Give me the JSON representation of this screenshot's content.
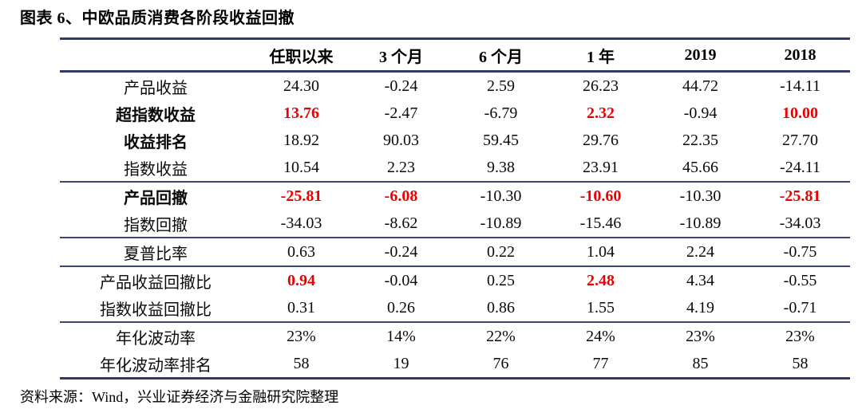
{
  "title": "图表 6、中欧品质消费各阶段收益回撤",
  "source_note": "资料来源：Wind，兴业证券经济与金融研究院整理",
  "colors": {
    "line_major": "#2f3a69",
    "line_divider": "#3c466f",
    "highlight_red": "#ee0000",
    "text": "#0a0a0a"
  },
  "table": {
    "corner_label": "",
    "columns": [
      "任职以来",
      "3 个月",
      "6 个月",
      "1 年",
      "2019",
      "2018"
    ],
    "rows": [
      {
        "label": "产品收益",
        "label_bold": false,
        "section_end": false,
        "cells": [
          {
            "v": "24.30"
          },
          {
            "v": "-0.24"
          },
          {
            "v": "2.59"
          },
          {
            "v": "26.23"
          },
          {
            "v": "44.72"
          },
          {
            "v": "-14.11"
          }
        ]
      },
      {
        "label": "超指数收益",
        "label_bold": true,
        "section_end": false,
        "cells": [
          {
            "v": "13.76",
            "red": true
          },
          {
            "v": "-2.47"
          },
          {
            "v": "-6.79"
          },
          {
            "v": "2.32",
            "red": true
          },
          {
            "v": "-0.94"
          },
          {
            "v": "10.00",
            "red": true
          }
        ]
      },
      {
        "label": "收益排名",
        "label_bold": true,
        "section_end": false,
        "cells": [
          {
            "v": "18.92"
          },
          {
            "v": "90.03"
          },
          {
            "v": "59.45"
          },
          {
            "v": "29.76"
          },
          {
            "v": "22.35"
          },
          {
            "v": "27.70"
          }
        ]
      },
      {
        "label": "指数收益",
        "label_bold": false,
        "section_end": true,
        "cells": [
          {
            "v": "10.54"
          },
          {
            "v": "2.23"
          },
          {
            "v": "9.38"
          },
          {
            "v": "23.91"
          },
          {
            "v": "45.66"
          },
          {
            "v": "-24.11"
          }
        ]
      },
      {
        "label": "产品回撤",
        "label_bold": true,
        "section_end": false,
        "cells": [
          {
            "v": "-25.81",
            "red": true
          },
          {
            "v": "-6.08",
            "red": true
          },
          {
            "v": "-10.30"
          },
          {
            "v": "-10.60",
            "red": true
          },
          {
            "v": "-10.30"
          },
          {
            "v": "-25.81",
            "red": true
          }
        ]
      },
      {
        "label": "指数回撤",
        "label_bold": false,
        "section_end": true,
        "cells": [
          {
            "v": "-34.03"
          },
          {
            "v": "-8.62"
          },
          {
            "v": "-10.89"
          },
          {
            "v": "-15.46"
          },
          {
            "v": "-10.89"
          },
          {
            "v": "-34.03"
          }
        ]
      },
      {
        "label": "夏普比率",
        "label_bold": false,
        "section_end": true,
        "cells": [
          {
            "v": "0.63"
          },
          {
            "v": "-0.24"
          },
          {
            "v": "0.22"
          },
          {
            "v": "1.04"
          },
          {
            "v": "2.24"
          },
          {
            "v": "-0.75"
          }
        ]
      },
      {
        "label": "产品收益回撤比",
        "label_bold": false,
        "section_end": false,
        "cells": [
          {
            "v": "0.94",
            "red": true
          },
          {
            "v": "-0.04"
          },
          {
            "v": "0.25"
          },
          {
            "v": "2.48",
            "red": true
          },
          {
            "v": "4.34"
          },
          {
            "v": "-0.55"
          }
        ]
      },
      {
        "label": "指数收益回撤比",
        "label_bold": false,
        "section_end": true,
        "cells": [
          {
            "v": "0.31"
          },
          {
            "v": "0.26"
          },
          {
            "v": "0.86"
          },
          {
            "v": "1.55"
          },
          {
            "v": "4.19"
          },
          {
            "v": "-0.71"
          }
        ]
      },
      {
        "label": "年化波动率",
        "label_bold": false,
        "section_end": false,
        "cells": [
          {
            "v": "23%"
          },
          {
            "v": "14%"
          },
          {
            "v": "22%"
          },
          {
            "v": "24%"
          },
          {
            "v": "23%"
          },
          {
            "v": "23%"
          }
        ]
      },
      {
        "label": "年化波动率排名",
        "label_bold": false,
        "section_end": false,
        "cells": [
          {
            "v": "58"
          },
          {
            "v": "19"
          },
          {
            "v": "76"
          },
          {
            "v": "77"
          },
          {
            "v": "85"
          },
          {
            "v": "58"
          }
        ]
      }
    ]
  }
}
